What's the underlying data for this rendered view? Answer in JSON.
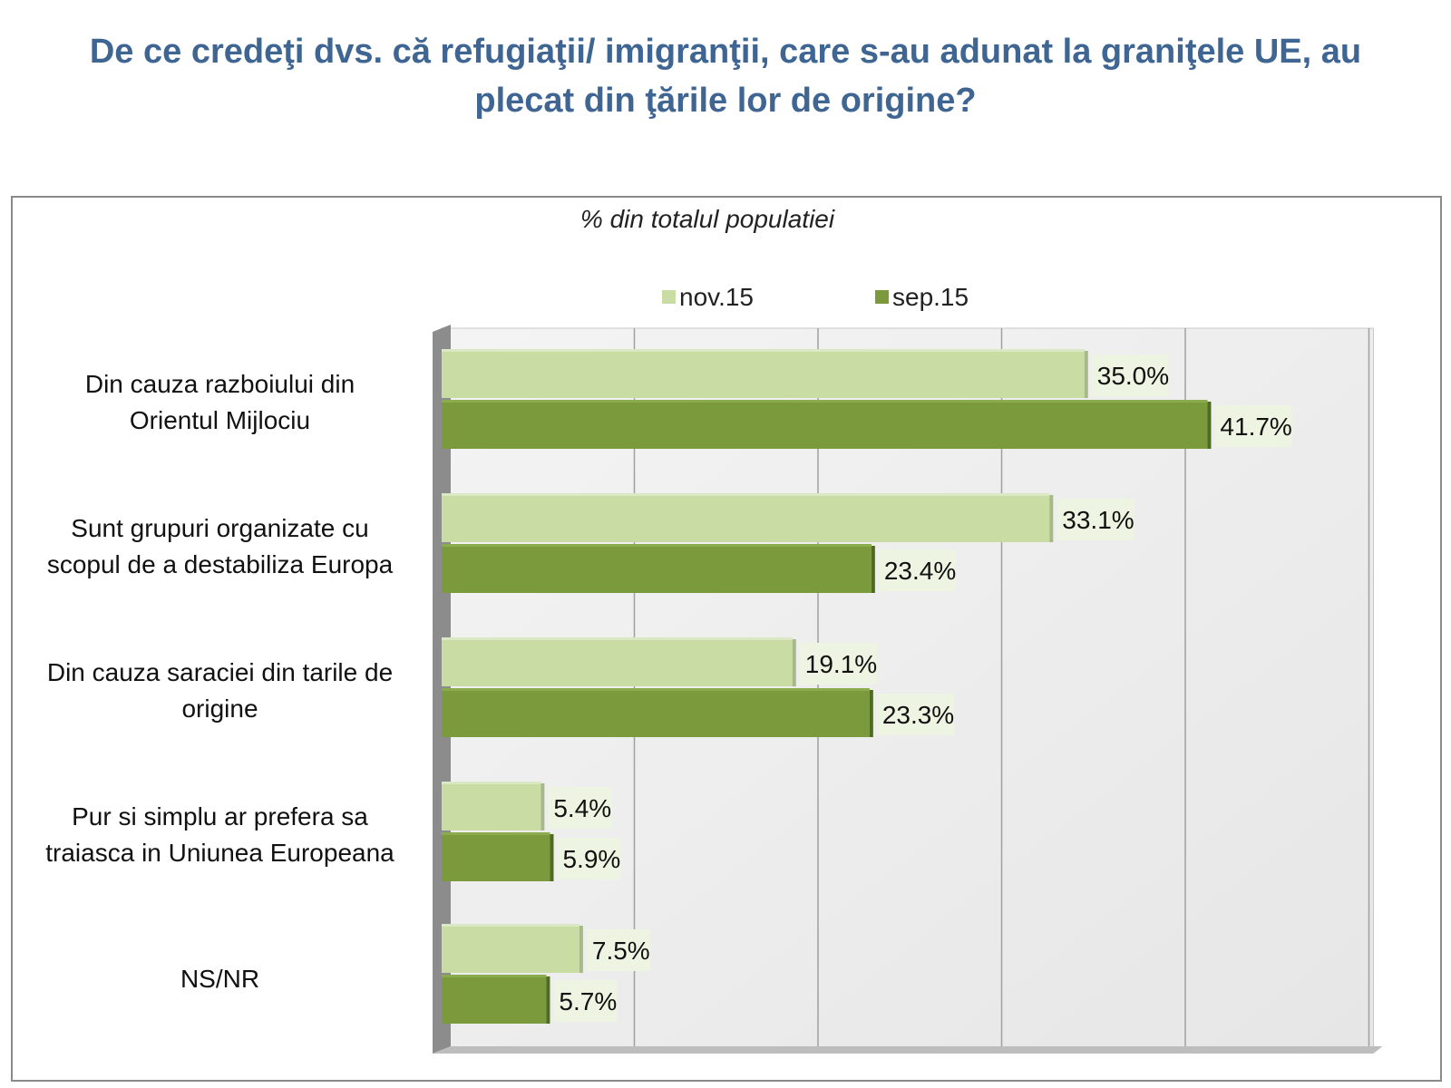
{
  "title_line1": "De ce credeţi dvs. că refugiaţii/ imigranţii, care s-au adunat la graniţele UE, au",
  "title_line2": "plecat din ţările lor de origine?",
  "chart_data": {
    "type": "bar",
    "orientation": "horizontal",
    "subtitle": "% din totalul populatiei",
    "categories": [
      [
        "Din cauza razboiului din",
        "Orientul Mijlociu"
      ],
      [
        "Sunt grupuri organizate cu",
        "scopul de a destabiliza Europa"
      ],
      [
        "Din cauza saraciei din tarile de",
        "origine"
      ],
      [
        "Pur si simplu ar prefera sa",
        "traiasca in Uniunea Europeana"
      ],
      [
        "NS/NR"
      ]
    ],
    "series": [
      {
        "name": "nov.15",
        "color": "#c8dca4",
        "values": [
          35.0,
          33.1,
          19.1,
          5.4,
          7.5
        ],
        "labels": [
          "35.0%",
          "33.1%",
          "19.1%",
          "5.4%",
          "7.5%"
        ]
      },
      {
        "name": "sep.15",
        "color": "#7a9a3c",
        "values": [
          41.7,
          23.4,
          23.3,
          5.9,
          5.7
        ],
        "labels": [
          "41.7%",
          "23.4%",
          "23.3%",
          "5.9%",
          "5.7%"
        ]
      }
    ],
    "xlim": [
      0,
      50
    ],
    "grid": true,
    "legend": "top-center",
    "xlabel": "",
    "ylabel": ""
  }
}
